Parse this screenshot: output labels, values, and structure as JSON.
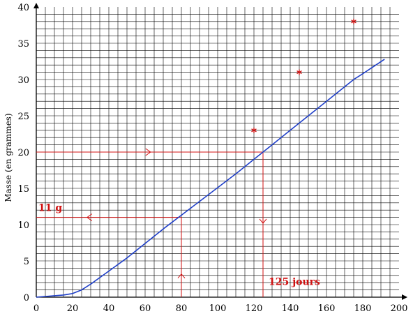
{
  "chart_data": {
    "type": "line",
    "title": "",
    "xlabel": "",
    "ylabel": "Masse (en grammes)",
    "xlim": [
      0,
      200
    ],
    "ylim": [
      0,
      40
    ],
    "x_ticks": [
      0,
      20,
      40,
      60,
      80,
      100,
      120,
      140,
      160,
      180,
      200
    ],
    "y_ticks": [
      0,
      5,
      10,
      15,
      20,
      25,
      30,
      35,
      40
    ],
    "grid": true,
    "grid_minor_x": 4,
    "grid_minor_y": 1,
    "series": [
      {
        "x": [
          0,
          5,
          10,
          15,
          20,
          25,
          30,
          40,
          50,
          60,
          70,
          80,
          90,
          100,
          110,
          120,
          130,
          140,
          150,
          160,
          170,
          175,
          180,
          192
        ],
        "y": [
          0,
          0.1,
          0.2,
          0.3,
          0.5,
          1.0,
          1.8,
          3.6,
          5.4,
          7.4,
          9.4,
          11.3,
          13.2,
          15.1,
          17.0,
          19.0,
          21.0,
          23.0,
          25.0,
          27.0,
          29.0,
          30.0,
          30.8,
          32.8
        ],
        "color": "#1f3fc8"
      }
    ],
    "points": {
      "x": [
        120,
        145,
        175
      ],
      "y": [
        23,
        31,
        38
      ],
      "color": "#d01010"
    },
    "guides": {
      "color": "#d01010",
      "readings": [
        {
          "from_axis": "x",
          "x": 80,
          "y": 11,
          "label": "11 g"
        },
        {
          "from_axis": "y",
          "x": 125,
          "y": 20,
          "label": "125 jours"
        }
      ]
    }
  }
}
